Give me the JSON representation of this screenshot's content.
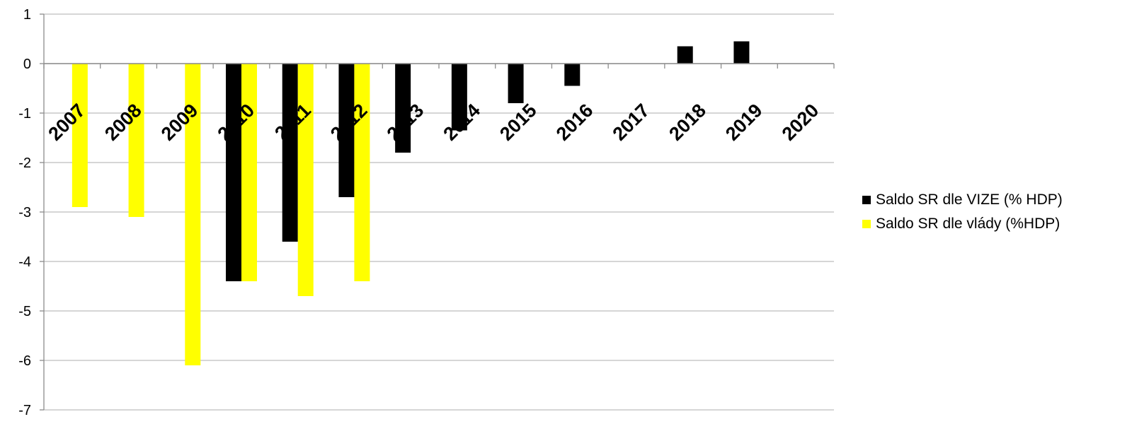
{
  "chart_data": {
    "type": "bar",
    "title": "",
    "xlabel": "",
    "ylabel": "",
    "categories": [
      "2007",
      "2008",
      "2009",
      "2010",
      "2011",
      "2012",
      "2013",
      "2014",
      "2015",
      "2016",
      "2017",
      "2018",
      "2019",
      "2020"
    ],
    "series": [
      {
        "name": "Saldo SR dle VIZE (% HDP)",
        "color": "#000000",
        "values": [
          null,
          null,
          null,
          -4.4,
          -3.6,
          -2.7,
          -1.8,
          -1.35,
          -0.8,
          -0.45,
          null,
          0.35,
          0.45,
          null
        ]
      },
      {
        "name": "Saldo SR dle vlády (%HDP)",
        "color": "#ffff00",
        "values": [
          -2.9,
          -3.1,
          -6.1,
          -4.4,
          -4.7,
          -4.4,
          null,
          null,
          null,
          null,
          null,
          null,
          null,
          null
        ]
      }
    ],
    "ylim": [
      -7,
      1
    ],
    "yticks": [
      1,
      0,
      -1,
      -2,
      -3,
      -4,
      -5,
      -6,
      -7
    ],
    "grid": true,
    "legend_position": "right"
  }
}
